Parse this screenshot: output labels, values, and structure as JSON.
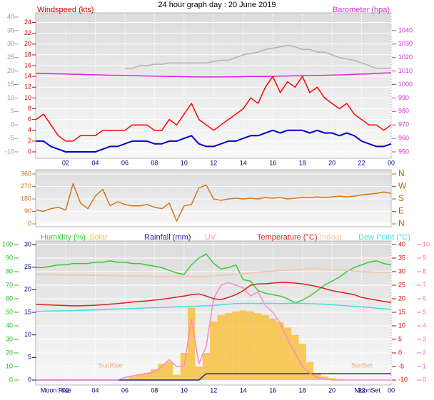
{
  "chart_data": [
    {
      "type": "line",
      "title": "24 hour graph day : 20 June 2019",
      "y_label": "Windspeed (kts)",
      "y2_label": "Barometer (hpa)",
      "xlim": [
        0,
        24
      ],
      "xticks": [
        {
          "value": 2,
          "label": "02"
        },
        {
          "value": 4,
          "label": "04"
        },
        {
          "value": 6,
          "label": "06"
        },
        {
          "value": 8,
          "label": "08"
        },
        10,
        12,
        14,
        16,
        18,
        20,
        22,
        {
          "value": 24,
          "label": "00"
        }
      ],
      "x": [
        0,
        0.5,
        1,
        1.5,
        2,
        2.5,
        3,
        3.5,
        4,
        4.5,
        5,
        5.5,
        6,
        6.5,
        7,
        7.5,
        8,
        8.5,
        9,
        9.5,
        10,
        10.5,
        11,
        11.5,
        12,
        12.5,
        13,
        13.5,
        14,
        14.5,
        15,
        15.5,
        16,
        16.5,
        17,
        17.5,
        18,
        18.5,
        19,
        19.5,
        20,
        20.5,
        21,
        21.5,
        22,
        22.5,
        23,
        23.5,
        24
      ],
      "ylim": [
        0,
        25
      ],
      "yticks": [
        0,
        2,
        4,
        6,
        8,
        10,
        12,
        14,
        16,
        18,
        20,
        22,
        24
      ],
      "y2lim": [
        950,
        1050
      ],
      "y2ticks": [
        950,
        960,
        970,
        980,
        990,
        1000,
        1010,
        1020,
        1030,
        1040
      ],
      "y3lim": [
        -10,
        40
      ],
      "y3ticks": [
        -10,
        -5,
        0,
        5,
        10,
        15,
        20,
        25,
        30,
        35,
        40
      ],
      "grid": true,
      "series": [
        {
          "color": "#b4b4b4",
          "axis": "y3",
          "values": [
            null,
            null,
            null,
            null,
            null,
            null,
            null,
            null,
            null,
            null,
            null,
            null,
            21,
            21,
            22,
            22,
            22.5,
            22.5,
            23,
            23,
            23,
            23,
            23,
            23,
            23.5,
            24,
            24,
            25,
            26,
            26.5,
            27,
            28,
            28.5,
            29,
            29.5,
            29,
            28,
            28,
            27,
            27,
            26,
            25,
            24.5,
            24,
            23,
            22,
            21,
            21,
            21
          ]
        },
        {
          "color": "#dd22dd",
          "axis": "y2",
          "values": [
            1008.2,
            1008.1,
            1008,
            1007.9,
            1007.8,
            1007.6,
            1007.5,
            1007.3,
            1007.2,
            1007,
            1006.9,
            1006.8,
            1006.7,
            1006.5,
            1006.4,
            1006.3,
            1006.2,
            1006.1,
            1006,
            1005.9,
            1005.8,
            1005.7,
            1005.6,
            1005.6,
            1005.6,
            1005.6,
            1005.7,
            1005.7,
            1005.8,
            1005.9,
            1006,
            1006,
            1006.1,
            1006.2,
            1006.3,
            1006.4,
            1006.5,
            1006.6,
            1006.7,
            1006.8,
            1007,
            1007.1,
            1007.3,
            1007.5,
            1007.7,
            1007.9,
            1008.2,
            1008.5,
            1008.7
          ]
        },
        {
          "color": "#ff0000",
          "values": [
            6,
            7,
            5,
            3,
            2,
            2,
            3,
            3,
            3,
            4,
            4,
            4,
            4,
            5,
            5,
            5,
            4,
            4,
            6,
            5,
            7,
            9,
            6,
            5,
            4,
            5,
            6,
            7,
            8,
            10,
            9,
            12,
            14,
            11,
            13,
            12,
            14,
            11,
            12,
            10,
            9,
            8,
            9,
            7,
            6,
            5,
            5,
            4,
            5
          ]
        },
        {
          "color": "#0000cc",
          "values": [
            2,
            2,
            1,
            0.5,
            0,
            0,
            0,
            0,
            0,
            0.5,
            1,
            1,
            1.5,
            2,
            2,
            2,
            1.5,
            1.5,
            2,
            2,
            2.5,
            3,
            1.5,
            1,
            1,
            1.5,
            2,
            2,
            2.5,
            3,
            3,
            3.5,
            4,
            3.5,
            4,
            4,
            4,
            3.5,
            4,
            3.5,
            3.5,
            3,
            3.5,
            3,
            2,
            1.5,
            1,
            1,
            1.5
          ]
        }
      ]
    },
    {
      "type": "line",
      "xlim": [
        0,
        24
      ],
      "x": [
        0,
        0.5,
        1,
        1.5,
        2,
        2.5,
        3,
        3.5,
        4,
        4.5,
        5,
        5.5,
        6,
        6.5,
        7,
        7.5,
        8,
        8.5,
        9,
        9.5,
        10,
        10.5,
        11,
        11.5,
        12,
        12.5,
        13,
        13.5,
        14,
        14.5,
        15,
        15.5,
        16,
        16.5,
        17,
        17.5,
        18,
        18.5,
        19,
        19.5,
        20,
        20.5,
        21,
        21.5,
        22,
        22.5,
        23,
        23.5,
        24
      ],
      "ylim": [
        0,
        360
      ],
      "yticks": [
        0,
        90,
        180,
        270,
        360
      ],
      "y2lim": [
        0,
        360
      ],
      "y2ticks": [
        {
          "value": 0,
          "label": "N"
        },
        {
          "value": 90,
          "label": "E"
        },
        {
          "value": 180,
          "label": "S"
        },
        {
          "value": 270,
          "label": "W"
        },
        {
          "value": 360,
          "label": "N"
        }
      ],
      "grid": true,
      "series": [
        {
          "color": "#d07820",
          "values": [
            100,
            90,
            110,
            120,
            100,
            290,
            150,
            110,
            200,
            250,
            130,
            160,
            140,
            130,
            130,
            140,
            120,
            110,
            150,
            20,
            130,
            140,
            260,
            280,
            180,
            170,
            180,
            185,
            180,
            185,
            180,
            190,
            185,
            190,
            180,
            185,
            190,
            190,
            195,
            190,
            195,
            200,
            195,
            200,
            210,
            215,
            220,
            230,
            220
          ]
        }
      ]
    },
    {
      "type": "line",
      "xlim": [
        0,
        24
      ],
      "xticks": [
        {
          "value": 2,
          "label": "02"
        },
        {
          "value": 4,
          "label": "04"
        },
        {
          "value": 6,
          "label": "06"
        },
        {
          "value": 8,
          "label": "08"
        },
        10,
        12,
        14,
        16,
        18,
        20,
        22,
        {
          "value": 24,
          "label": "00"
        }
      ],
      "x": [
        0,
        0.5,
        1,
        1.5,
        2,
        2.5,
        3,
        3.5,
        4,
        4.5,
        5,
        5.5,
        6,
        6.5,
        7,
        7.5,
        8,
        8.5,
        9,
        9.5,
        10,
        10.5,
        11,
        11.5,
        12,
        12.5,
        13,
        13.5,
        14,
        14.5,
        15,
        15.5,
        16,
        16.5,
        17,
        17.5,
        18,
        18.5,
        19,
        19.5,
        20,
        20.5,
        21,
        21.5,
        22,
        22.5,
        23,
        23.5,
        24
      ],
      "ylim": [
        0,
        100
      ],
      "yticks": [
        0,
        10,
        20,
        30,
        40,
        50,
        60,
        70,
        80,
        90,
        100
      ],
      "y2lim": [
        -10,
        40
      ],
      "y2ticks": [
        -10,
        -5,
        0,
        5,
        10,
        15,
        20,
        25,
        30,
        35,
        40
      ],
      "y3lim": [
        0,
        30
      ],
      "y3ticks": [
        0,
        5,
        10,
        15,
        20,
        25,
        30
      ],
      "y4lim": [
        0,
        10
      ],
      "y4ticks": [
        0,
        1,
        2,
        3,
        4,
        5,
        6,
        7,
        8,
        9,
        10
      ],
      "y5lim": [
        0,
        1500
      ],
      "grid": true,
      "annotations": [
        {
          "text": "SunRise",
          "x": 4.2
        },
        {
          "text": "SunSet",
          "x": 21.3
        },
        {
          "text": "Moon Rise",
          "x": 0.3
        },
        {
          "text": "MoonSet",
          "x": 22.4
        }
      ],
      "series": [
        {
          "name": "Humidity (%)",
          "color": "#33cc33",
          "values": [
            83,
            83,
            84,
            85,
            85,
            86,
            86,
            86,
            87,
            87,
            88,
            87,
            87,
            86,
            86,
            85,
            84,
            83,
            81,
            79,
            78,
            85,
            90,
            93,
            86,
            82,
            83,
            85,
            74,
            73,
            66,
            64,
            63,
            62,
            60,
            57,
            59,
            62,
            66,
            70,
            73,
            76,
            80,
            83,
            85,
            87,
            88,
            86,
            85
          ]
        },
        {
          "name": "Solar",
          "color": "#f7c040",
          "axis": "y5",
          "fill": true,
          "values": [
            0,
            0,
            0,
            0,
            0,
            0,
            0,
            0,
            0,
            0,
            0,
            0,
            10,
            40,
            60,
            80,
            120,
            180,
            200,
            60,
            300,
            800,
            150,
            300,
            650,
            720,
            740,
            760,
            770,
            760,
            740,
            720,
            680,
            640,
            580,
            500,
            400,
            200,
            80,
            40,
            20,
            10,
            0,
            0,
            0,
            0,
            0,
            0,
            0
          ]
        },
        {
          "name": "Rainfall (mm)",
          "color": "#2222aa",
          "axis": "y3",
          "values": [
            0,
            0,
            0,
            0,
            0,
            0,
            0,
            0,
            0,
            0,
            0,
            0,
            0,
            0,
            0,
            0,
            0,
            0,
            0,
            0,
            0,
            0,
            0,
            1.4,
            1.4,
            1.4,
            1.4,
            1.4,
            1.4,
            1.4,
            1.4,
            1.4,
            1.4,
            1.4,
            1.4,
            1.4,
            1.4,
            1.4,
            1.4,
            1.4,
            1.4,
            1.4,
            1.4,
            1.4,
            1.4,
            1.4,
            1.4,
            1.4,
            1.4
          ]
        },
        {
          "name": "UV",
          "color": "#ff88cc",
          "axis": "y4",
          "values": [
            0,
            0,
            0,
            0,
            0,
            0,
            0,
            0,
            0,
            0,
            0,
            0,
            0.2,
            0.3,
            0.4,
            0.5,
            0.6,
            1,
            1.5,
            1,
            1,
            4.5,
            1.2,
            2.5,
            6,
            7,
            7.2,
            7,
            6.8,
            6.2,
            6.5,
            5.5,
            5,
            4.2,
            3,
            2,
            1,
            0.5,
            0.2,
            0.1,
            0,
            0,
            0,
            0,
            0,
            0,
            0,
            0,
            0
          ]
        },
        {
          "name": "Temperature (°C)",
          "color": "#dd2020",
          "axis": "y2",
          "values": [
            17.9,
            17.8,
            17.7,
            17.6,
            17.5,
            17.4,
            17.4,
            17.5,
            17.6,
            17.8,
            18,
            18.2,
            18.5,
            18.8,
            19,
            19.2,
            19.5,
            19.8,
            20.2,
            20.6,
            21,
            21.5,
            21.8,
            21,
            20,
            19.7,
            20.5,
            21.5,
            23,
            25,
            25.5,
            25.5,
            25.8,
            26,
            26,
            25.8,
            25.5,
            25,
            24.5,
            23.8,
            23,
            22.5,
            22,
            21.5,
            20.5,
            20,
            19.5,
            19,
            18.6
          ]
        },
        {
          "name": "Indoor",
          "color": "#f5c4a0",
          "axis": "y2",
          "values": [
            29,
            29,
            28.9,
            28.8,
            28.8,
            28.7,
            28.7,
            28.6,
            28.6,
            28.5,
            28.5,
            28.5,
            28.4,
            28.4,
            28.4,
            28.4,
            28.3,
            28.3,
            28.3,
            28.3,
            28.3,
            28.3,
            28.2,
            28.2,
            28.4,
            28.6,
            28.8,
            29,
            29.3,
            29.5,
            29.8,
            30,
            30.2,
            30.4,
            30.6,
            30.8,
            31,
            31.1,
            31.2,
            31,
            30.8,
            30.6,
            30.4,
            30.2,
            30,
            29.9,
            29.8,
            29.7,
            29.6
          ]
        },
        {
          "name": "Dew Point (°C)",
          "color": "#40e0e0",
          "axis": "y2",
          "values": [
            15.3,
            15.4,
            15.5,
            15.5,
            15.6,
            15.6,
            15.7,
            15.8,
            15.9,
            16,
            16.1,
            16.2,
            16.3,
            16.4,
            16.5,
            16.6,
            16.7,
            16.8,
            16.9,
            17,
            17.1,
            17.2,
            17.3,
            17.4,
            17.5,
            17.8,
            18,
            18.2,
            18.3,
            18.3,
            18.2,
            18.3,
            18.3,
            18.2,
            18.3,
            18.4,
            18.3,
            18.2,
            18.1,
            18,
            17.8,
            17.6,
            17.4,
            17.2,
            17,
            16.8,
            16.5,
            16.3,
            16.1
          ]
        }
      ]
    }
  ]
}
